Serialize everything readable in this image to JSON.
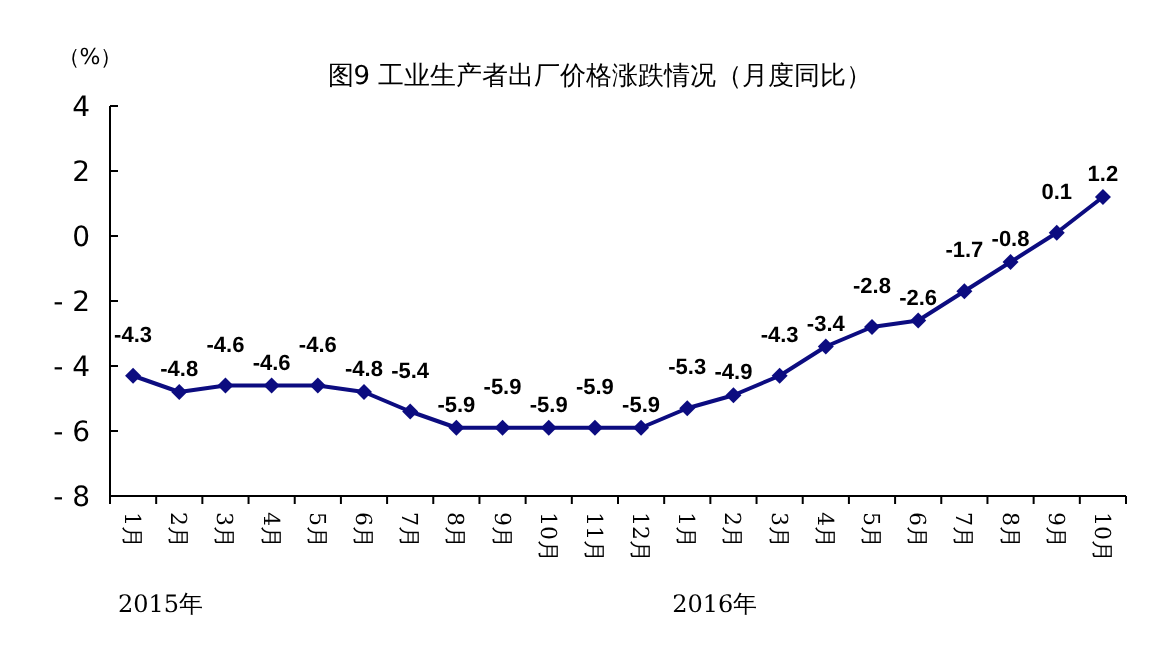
{
  "chart_data": {
    "type": "line",
    "title": "图9  工业生产者出厂价格涨跌情况（月度同比）",
    "ylabel": "（%）",
    "categories": [
      "1月",
      "2月",
      "3月",
      "4月",
      "5月",
      "6月",
      "7月",
      "8月",
      "9月",
      "10月",
      "11月",
      "12月",
      "1月",
      "2月",
      "3月",
      "4月",
      "5月",
      "6月",
      "7月",
      "8月",
      "9月",
      "10月"
    ],
    "series": [
      {
        "color": "#0c0c80",
        "values": [
          -4.3,
          -4.8,
          -4.6,
          -4.6,
          -4.6,
          -4.8,
          -5.4,
          -5.9,
          -5.9,
          -5.9,
          -5.9,
          -5.9,
          -5.3,
          -4.9,
          -4.3,
          -3.4,
          -2.8,
          -2.6,
          -1.7,
          -0.8,
          0.1,
          1.2
        ]
      }
    ],
    "ylim": [
      -8,
      4
    ],
    "yticks": [
      4,
      2,
      0,
      {
        "value": -2,
        "label": "- 2"
      },
      {
        "value": -4,
        "label": "- 4"
      },
      {
        "value": -6,
        "label": "- 6"
      },
      {
        "value": -8,
        "label": "- 8"
      }
    ],
    "annotations": [
      "2015年",
      "2016年"
    ],
    "data_labels": true,
    "marker": "diamond",
    "line_style": "solid",
    "grid": false
  }
}
